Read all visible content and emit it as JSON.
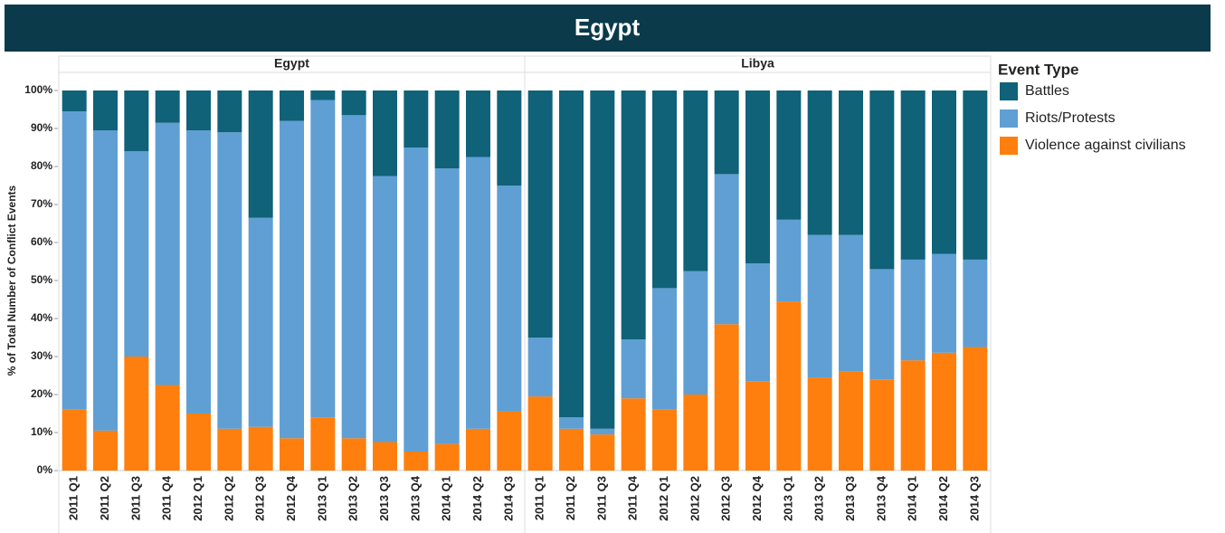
{
  "title": "Egypt",
  "chart_data": [
    {
      "type": "stacked_bar",
      "title": "Egypt",
      "y_label": "% of Total Number of Conflict Events",
      "legend_title": "Event Type",
      "categories": [
        "2011 Q1",
        "2011 Q2",
        "2011 Q3",
        "2011 Q4",
        "2012 Q1",
        "2012 Q2",
        "2012 Q3",
        "2012 Q4",
        "2013 Q1",
        "2013 Q2",
        "2013 Q3",
        "2013 Q4",
        "2014 Q1",
        "2014 Q2",
        "2014 Q3"
      ],
      "ylim": [
        0,
        100
      ],
      "yticks": [
        {
          "value": 0,
          "label": "0%"
        },
        {
          "value": 10,
          "label": "10%"
        },
        {
          "value": 20,
          "label": "20%"
        },
        {
          "value": 30,
          "label": "30%"
        },
        {
          "value": 40,
          "label": "40%"
        },
        {
          "value": 50,
          "label": "50%"
        },
        {
          "value": 60,
          "label": "60%"
        },
        {
          "value": 70,
          "label": "70%"
        },
        {
          "value": 80,
          "label": "80%"
        },
        {
          "value": 90,
          "label": "90%"
        },
        {
          "value": 100,
          "label": "100%"
        }
      ],
      "series": [
        {
          "name": "Battles",
          "color": "#0f6278",
          "values": [
            5.5,
            10.5,
            16,
            8.5,
            10.5,
            11,
            33.5,
            8,
            2.5,
            6.5,
            22.5,
            15,
            20.5,
            17.5,
            25
          ]
        },
        {
          "name": "Riots/Protests",
          "color": "#5f9fd4",
          "values": [
            78.5,
            79,
            54,
            69,
            74.5,
            78,
            55,
            83.5,
            83.5,
            85,
            70,
            80,
            72.5,
            71.5,
            59.5
          ]
        },
        {
          "name": "Violence against civilians",
          "color": "#ff7f0e",
          "values": [
            16,
            10.5,
            30,
            22.5,
            15,
            11,
            11.5,
            8.5,
            14,
            8.5,
            7.5,
            5,
            7,
            11,
            15.5
          ]
        }
      ]
    },
    {
      "type": "stacked_bar",
      "title": "Libya",
      "categories": [
        "2011 Q1",
        "2011 Q2",
        "2011 Q3",
        "2011 Q4",
        "2012 Q1",
        "2012 Q2",
        "2012 Q3",
        "2012 Q4",
        "2013 Q1",
        "2013 Q2",
        "2013 Q3",
        "2013 Q4",
        "2014 Q1",
        "2014 Q2",
        "2014 Q3"
      ],
      "ylim": [
        0,
        100
      ],
      "series": [
        {
          "color": "#0f6278",
          "values": [
            65,
            86,
            89,
            65.5,
            52,
            47.5,
            22,
            45.5,
            34,
            38,
            38,
            47,
            44.5,
            43,
            44.5
          ]
        },
        {
          "color": "#5f9fd4",
          "values": [
            15.5,
            3,
            1.5,
            15.5,
            32,
            32.5,
            39.5,
            31,
            21.5,
            37.5,
            36,
            29,
            26.5,
            26,
            23
          ]
        },
        {
          "color": "#ff7f0e",
          "values": [
            19.5,
            11,
            9.5,
            19,
            16,
            20,
            38.5,
            23.5,
            44.5,
            24.5,
            26,
            24,
            29,
            31,
            32.5
          ]
        }
      ]
    }
  ]
}
